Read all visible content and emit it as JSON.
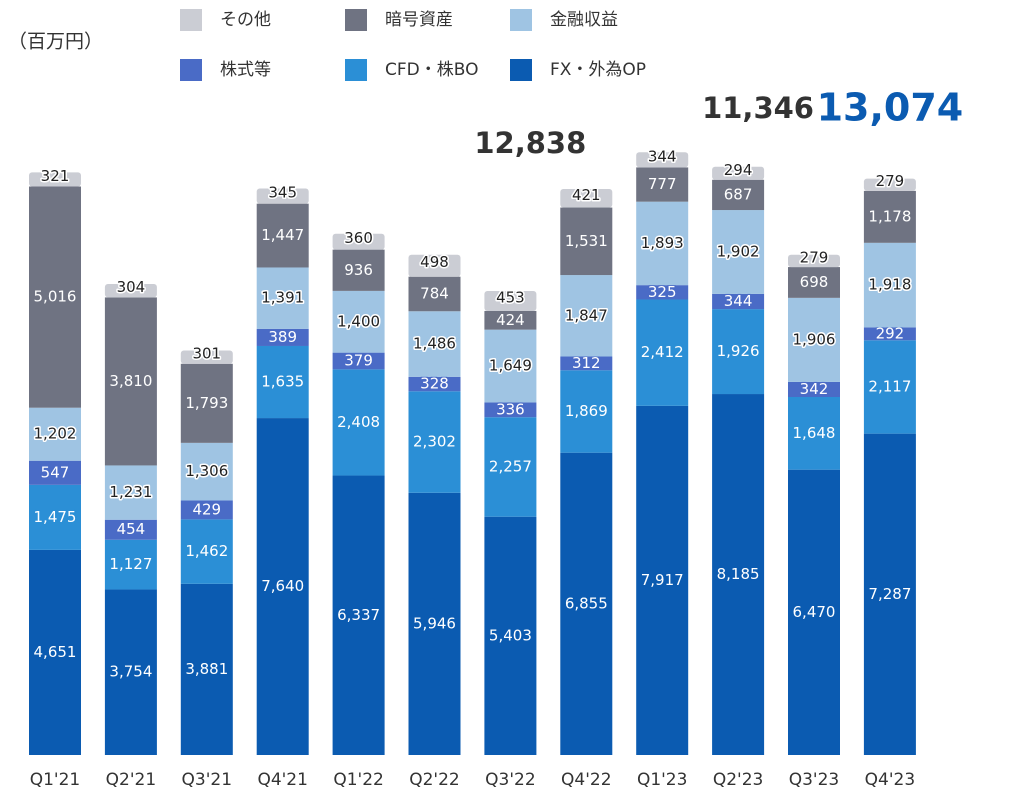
{
  "chart_data": {
    "type": "stacked_bar",
    "unit_label": "（百万円）",
    "categories": [
      "Q1'21",
      "Q2'21",
      "Q3'21",
      "Q4'21",
      "Q1'22",
      "Q2'22",
      "Q3'22",
      "Q4'22",
      "Q1'23",
      "Q2'23",
      "Q3'23",
      "Q4'23"
    ],
    "series": [
      {
        "name": "FX・外為OP",
        "color": "#0b5bb1",
        "values": [
          4651,
          3754,
          3881,
          7640,
          6337,
          5946,
          5403,
          6855,
          7917,
          8185,
          6470,
          7287
        ],
        "value_labels": [
          "4,651",
          "3,754",
          "3,881",
          "7,640",
          "6,337",
          "5,946",
          "5,403",
          "6,855",
          "7,917",
          "8,185",
          "6,470",
          "7,287"
        ]
      },
      {
        "name": "CFD・株BO",
        "color": "#2b8fd6",
        "values": [
          1475,
          1127,
          1462,
          1635,
          2408,
          2302,
          2257,
          1869,
          2412,
          1926,
          1648,
          2117
        ],
        "value_labels": [
          "1,475",
          "1,127",
          "1,462",
          "1,635",
          "2,408",
          "2,302",
          "2,257",
          "1,869",
          "2,412",
          "1,926",
          "1,648",
          "2,117"
        ]
      },
      {
        "name": "株式等",
        "color": "#4a6bc6",
        "values": [
          547,
          454,
          429,
          389,
          379,
          328,
          336,
          312,
          325,
          344,
          342,
          292
        ]
      },
      {
        "name": "金融収益",
        "color": "#9fc4e3",
        "values": [
          1202,
          1231,
          1306,
          1391,
          1400,
          1486,
          1649,
          1847,
          1893,
          1902,
          1906,
          1918
        ],
        "value_labels": [
          "1,202",
          "1,231",
          "1,306",
          "1,391",
          "1,400",
          "1,486",
          "1,649",
          "1,847",
          "1,893",
          "1,902",
          "1,906",
          "1,918"
        ]
      },
      {
        "name": "暗号資産",
        "color": "#6f7382",
        "values": [
          5016,
          3810,
          1793,
          1447,
          936,
          784,
          424,
          1531,
          777,
          687,
          698,
          1178
        ],
        "value_labels": [
          "5,016",
          "3,810",
          "1,793",
          "1,447",
          "936",
          "784",
          "424",
          "1,531",
          "777",
          "687",
          "698",
          "1,178"
        ]
      },
      {
        "name": "その他",
        "color": "#cbcdd4",
        "values": [
          321,
          304,
          301,
          345,
          360,
          498,
          453,
          421,
          344,
          294,
          279,
          279
        ]
      }
    ],
    "annotations": [
      {
        "x": "Q4'22",
        "text": "12,838",
        "color": "#333333"
      },
      {
        "x": "Q3'23",
        "text": "11,346",
        "color": "#333333"
      },
      {
        "x": "Q4'23",
        "text": "13,074",
        "color": "#0b5bb1"
      }
    ]
  }
}
